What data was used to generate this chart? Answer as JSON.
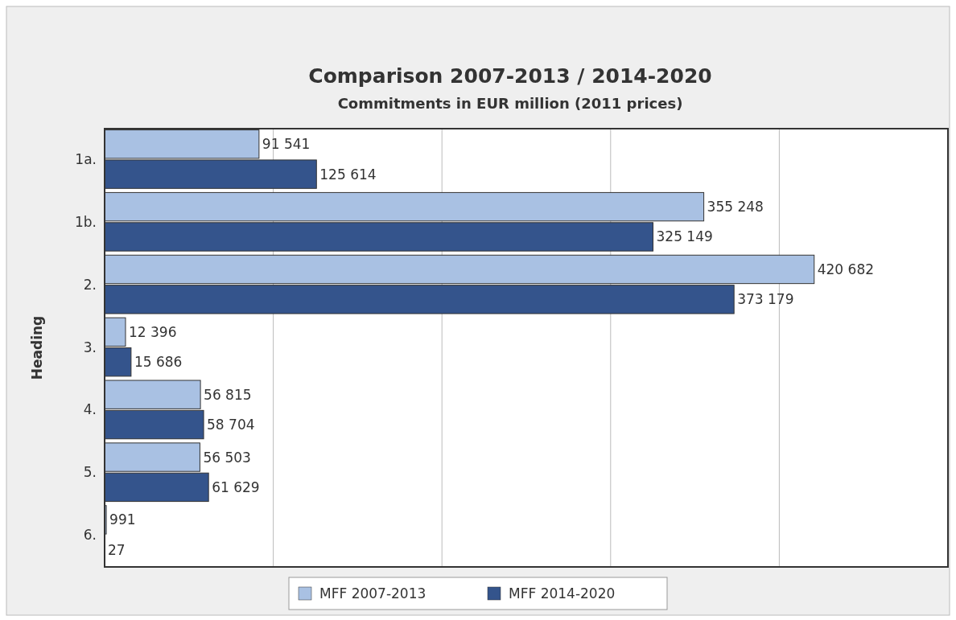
{
  "chart_data": {
    "type": "bar",
    "orientation": "horizontal",
    "title": "Comparison 2007-2013 / 2014-2020",
    "subtitle": "Commitments in EUR million  (2011 prices)",
    "ylabel": "Heading",
    "categories": [
      "1a.",
      "1b.",
      "2.",
      "3.",
      "4.",
      "5.",
      "6."
    ],
    "series": [
      {
        "name": "MFF 2007-2013",
        "color": "#a9c1e3",
        "values": [
          91541,
          355248,
          420682,
          12396,
          56815,
          56503,
          991
        ],
        "value_labels": [
          "91 541",
          "355 248",
          "420 682",
          "12 396",
          "56 815",
          "56 503",
          "991"
        ]
      },
      {
        "name": "MFF 2014-2020",
        "color": "#34548c",
        "values": [
          125614,
          325149,
          373179,
          15686,
          58704,
          61629,
          27
        ],
        "value_labels": [
          "125 614",
          "325 149",
          "373 179",
          "15 686",
          "58 704",
          "61 629",
          "27"
        ]
      }
    ],
    "xlim": [
      0,
      500000
    ],
    "xticks": [
      {
        "value": 100000,
        "label": null
      },
      {
        "value": 200000,
        "label": null
      },
      {
        "value": 300000,
        "label": null
      },
      {
        "value": 400000,
        "label": null
      }
    ],
    "tick_labels": "y",
    "grid": "x",
    "legend": "bottom"
  }
}
